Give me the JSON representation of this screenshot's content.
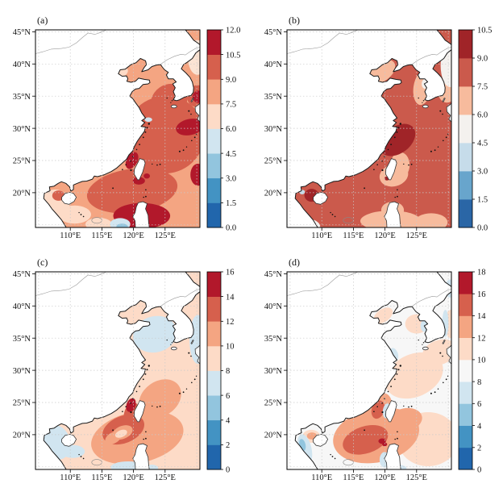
{
  "figure": {
    "background": "#ffffff",
    "layout": "2x2 filled-contour map grid"
  },
  "chart_data": {
    "type": "heatmap",
    "subtype": "filled_contour_geographic_maps",
    "region": "East China Sea / South China Sea / Yellow Sea",
    "axes": {
      "lon_range": [
        104.5,
        130.5
      ],
      "lat_range": [
        14.6,
        45.3
      ],
      "lon_tick_values": [
        110,
        115,
        120,
        125
      ],
      "lon_tick_labels": [
        "110°E",
        "115°E",
        "120°E",
        "125°E"
      ],
      "lat_tick_values": [
        20,
        25,
        30,
        35,
        40,
        45
      ],
      "lat_tick_labels": [
        "20°N",
        "25°N",
        "30°N",
        "35°N",
        "40°N",
        "45°N"
      ],
      "grid_lon": [
        105,
        110,
        115,
        120,
        125,
        130
      ],
      "grid_lat": [
        15,
        20,
        25,
        30,
        35,
        40,
        45
      ],
      "grid_on": true
    },
    "panels": [
      {
        "id": "a",
        "label": "(a)",
        "colorbar": {
          "range": [
            0,
            12
          ],
          "step": 1.5,
          "tick_labels": [
            "0.0",
            "1.5",
            "3.0",
            "4.5",
            "6.0",
            "7.5",
            "9.0",
            "10.5",
            "12.0"
          ],
          "colors_low_to_high": [
            "#2166ac",
            "#4393c3",
            "#92c5de",
            "#d1e5f0",
            "#fddbc7",
            "#f4a582",
            "#d6604d",
            "#b2182b"
          ]
        },
        "base_color": "#f4a582",
        "base_value_band": "7.5-9.0",
        "regions": [
          {
            "v": "9.0-10.5",
            "c": "#d6604d",
            "x": 125.0,
            "y": 29.0,
            "rx": 6.3,
            "ry": 6.0,
            "a": -20
          },
          {
            "v": "9.0-10.5",
            "c": "#d6604d",
            "x": 125.6,
            "y": 34.2,
            "rx": 3.0,
            "ry": 2.6,
            "a": -35
          },
          {
            "v": "9.0-10.5",
            "c": "#d6604d",
            "x": 130.1,
            "y": 35.0,
            "rx": 1.7,
            "ry": 1.7,
            "a": 0
          },
          {
            "v": "9.0-10.5",
            "c": "#d6604d",
            "x": 119.8,
            "y": 20.3,
            "rx": 7.2,
            "ry": 3.4,
            "a": -8
          },
          {
            "v": "10.5-12.0",
            "c": "#b2182b",
            "x": 128.9,
            "y": 30.2,
            "rx": 2.2,
            "ry": 1.25,
            "a": -12
          },
          {
            "v": "10.5-12.0",
            "c": "#b2182b",
            "x": 130.3,
            "y": 34.9,
            "rx": 0.95,
            "ry": 0.95,
            "a": 0
          },
          {
            "v": "10.5-12.0",
            "c": "#b2182b",
            "x": 119.75,
            "y": 25.0,
            "rx": 0.85,
            "ry": 1.4,
            "a": 28
          },
          {
            "v": "10.5-12.0",
            "c": "#b2182b",
            "x": 120.85,
            "y": 21.85,
            "rx": 0.95,
            "ry": 0.6,
            "a": 0
          },
          {
            "v": "10.5-12.0",
            "c": "#b2182b",
            "x": 122.1,
            "y": 22.6,
            "rx": 0.5,
            "ry": 0.4,
            "a": 0
          },
          {
            "v": "10.5-12.0",
            "c": "#b2182b",
            "x": 121.3,
            "y": 16.4,
            "rx": 4.5,
            "ry": 2.0,
            "a": 0
          },
          {
            "v": "10.5-12.0",
            "c": "#b2182b",
            "x": 130.2,
            "y": 22.8,
            "rx": 1.2,
            "ry": 1.7,
            "a": 0
          },
          {
            "v": "6.0-7.5",
            "c": "#fddbc7",
            "x": 107.6,
            "y": 18.3,
            "rx": 2.3,
            "ry": 2.2,
            "a": 0
          },
          {
            "v": "6.0-7.5",
            "c": "#fddbc7",
            "x": 110.7,
            "y": 16.6,
            "rx": 2.6,
            "ry": 1.4,
            "a": 0
          },
          {
            "v": "6.0-7.5",
            "c": "#fddbc7",
            "x": 114.5,
            "y": 15.1,
            "rx": 2.1,
            "ry": 1.0,
            "a": 0
          },
          {
            "v": "9.0-10.5",
            "c": "#d6604d",
            "x": 108.15,
            "y": 19.55,
            "rx": 1.0,
            "ry": 0.8,
            "a": 0
          },
          {
            "v": "6.0-7.5",
            "c": "#fddbc7",
            "x": 118.3,
            "y": 38.7,
            "rx": 0.9,
            "ry": 0.6,
            "a": -35
          },
          {
            "v": "6.0",
            "c": "#fbe3d3",
            "x": 130.1,
            "y": 41.0,
            "rx": 1.5,
            "ry": 2.7,
            "a": 0
          },
          {
            "v": "4.5-6.0",
            "c": "#d1e5f0",
            "x": 122.35,
            "y": 31.35,
            "rx": 0.6,
            "ry": 0.35,
            "a": 0
          },
          {
            "v": "4.5-6.0",
            "c": "#d1e5f0",
            "x": 117.9,
            "y": 15.1,
            "rx": 1.6,
            "ry": 0.95,
            "a": 0
          },
          {
            "v": "3.0-4.5",
            "c": "#92c5de",
            "x": 118.2,
            "y": 14.75,
            "rx": 0.9,
            "ry": 0.45,
            "a": 0
          }
        ]
      },
      {
        "id": "b",
        "label": "(b)",
        "colorbar": {
          "range": [
            0,
            10.5
          ],
          "step": 1.5,
          "tick_labels": [
            "0.0",
            "1.5",
            "3.0",
            "4.5",
            "6.0",
            "7.5",
            "9.0",
            "10.5"
          ],
          "colors_low_to_high": [
            "#2a66a6",
            "#68a5cc",
            "#c6dcea",
            "#f4f1ee",
            "#f7bb9d",
            "#cb5a4c",
            "#a02428"
          ]
        },
        "base_color": "#cb5a4c",
        "base_value_band": "7.5-9.0",
        "regions": [
          {
            "v": "6.0-7.5",
            "c": "#f7bb9d",
            "x": 119.4,
            "y": 38.8,
            "rx": 2.5,
            "ry": 1.5,
            "a": -35
          },
          {
            "v": "6.0-7.5",
            "c": "#f7bb9d",
            "x": 125.9,
            "y": 36.3,
            "rx": 1.4,
            "ry": 2.7,
            "a": 8
          },
          {
            "v": "6.0-7.5",
            "c": "#f7bb9d",
            "x": 121.4,
            "y": 22.7,
            "rx": 2.3,
            "ry": 1.7,
            "a": -15
          },
          {
            "v": "6.0-7.5",
            "c": "#f7bb9d",
            "x": 122.4,
            "y": 24.3,
            "rx": 1.5,
            "ry": 2.0,
            "a": 0
          },
          {
            "v": "6.0-7.5",
            "c": "#f7bb9d",
            "x": 120.9,
            "y": 15.6,
            "rx": 4.8,
            "ry": 1.6,
            "a": 0
          },
          {
            "v": "6.0-7.5",
            "c": "#f7bb9d",
            "x": 121.2,
            "y": 17.3,
            "rx": 1.8,
            "ry": 1.3,
            "a": 0
          },
          {
            "v": "6.0-7.5",
            "c": "#f7bb9d",
            "x": 127.3,
            "y": 15.4,
            "rx": 2.6,
            "ry": 1.4,
            "a": 0
          },
          {
            "v": "6.0-7.5",
            "c": "#f7bb9d",
            "x": 129.8,
            "y": 35.6,
            "rx": 1.4,
            "ry": 1.6,
            "a": 0
          },
          {
            "v": "4.5-6.0",
            "c": "#f4f1ee",
            "x": 126.35,
            "y": 36.9,
            "rx": 0.55,
            "ry": 0.75,
            "a": 0
          },
          {
            "v": "4.5-6.0",
            "c": "#f4f1ee",
            "x": 130.3,
            "y": 39.8,
            "rx": 1.5,
            "ry": 3.4,
            "a": 0
          },
          {
            "v": "4.5-6.0",
            "c": "#f4f1ee",
            "x": 108.5,
            "y": 15.0,
            "rx": 1.3,
            "ry": 0.8,
            "a": 20
          },
          {
            "v": "9.0-10.5",
            "c": "#a02428",
            "x": 122.0,
            "y": 28.2,
            "rx": 3.15,
            "ry": 2.05,
            "a": -38
          },
          {
            "v": "9.0-10.5",
            "c": "#a02428",
            "x": 108.4,
            "y": 19.6,
            "rx": 1.15,
            "ry": 1.0,
            "a": 0
          },
          {
            "v": "9.0-10.5",
            "c": "#a02428",
            "x": 120.3,
            "y": 22.2,
            "rx": 0.4,
            "ry": 0.3,
            "a": 0
          },
          {
            "v": "3.0-4.5",
            "c": "#c6dcea",
            "x": 106.9,
            "y": 20.1,
            "rx": 0.45,
            "ry": 0.35,
            "a": 0
          }
        ]
      },
      {
        "id": "c",
        "label": "(c)",
        "colorbar": {
          "range": [
            0,
            16
          ],
          "step": 2,
          "tick_labels": [
            "0",
            "2",
            "4",
            "6",
            "8",
            "10",
            "12",
            "14",
            "16"
          ],
          "colors_low_to_high": [
            "#2166ac",
            "#4393c3",
            "#92c5de",
            "#d1e5f0",
            "#fddbc7",
            "#f4a582",
            "#d6604d",
            "#b2182b"
          ]
        },
        "base_color": "#fddbc7",
        "base_value_band": "8-10",
        "regions": [
          {
            "v": "10-12",
            "c": "#f4a582",
            "x": 120.6,
            "y": 19.6,
            "rx": 7.4,
            "ry": 4.0,
            "a": -12
          },
          {
            "v": "10-12",
            "c": "#f4a582",
            "x": 124.2,
            "y": 25.6,
            "rx": 3.6,
            "ry": 2.7,
            "a": -35
          },
          {
            "v": "12-14",
            "c": "#d6604d",
            "x": 118.4,
            "y": 20.8,
            "rx": 3.45,
            "ry": 2.1,
            "a": -22
          },
          {
            "v": "12-14",
            "c": "#d6604d",
            "x": 119.65,
            "y": 23.2,
            "rx": 1.15,
            "ry": 1.9,
            "a": 15
          },
          {
            "v": "10-12",
            "c": "#f4a582",
            "x": 118.25,
            "y": 20.35,
            "rx": 1.7,
            "ry": 1.0,
            "a": -22
          },
          {
            "v": "10-12",
            "c": "#f4a582",
            "x": 116.8,
            "y": 19.5,
            "rx": 1.4,
            "ry": 0.85,
            "a": -30
          },
          {
            "v": "8-10",
            "c": "#fddbc7",
            "x": 118.05,
            "y": 20.15,
            "rx": 1.0,
            "ry": 0.55,
            "a": -22
          },
          {
            "v": "14-16",
            "c": "#b2182b",
            "x": 119.6,
            "y": 24.6,
            "rx": 0.72,
            "ry": 1.1,
            "a": 20
          },
          {
            "v": "6-8",
            "c": "#d1e5f0",
            "x": 123.4,
            "y": 35.6,
            "rx": 3.5,
            "ry": 2.8,
            "a": -15
          },
          {
            "v": "6-8",
            "c": "#d1e5f0",
            "x": 130.2,
            "y": 34.8,
            "rx": 1.35,
            "ry": 3.8,
            "a": 0
          },
          {
            "v": "6-8",
            "c": "#d1e5f0",
            "x": 107.9,
            "y": 18.8,
            "rx": 2.1,
            "ry": 2.7,
            "a": -15
          },
          {
            "v": "6-8",
            "c": "#d1e5f0",
            "x": 110.4,
            "y": 17.4,
            "rx": 1.9,
            "ry": 1.0,
            "a": 0
          },
          {
            "v": "6-8",
            "c": "#d1e5f0",
            "x": 119.2,
            "y": 14.95,
            "rx": 2.8,
            "ry": 0.9,
            "a": 0
          },
          {
            "v": "6-8",
            "c": "#d1e5f0",
            "x": 122.9,
            "y": 14.8,
            "rx": 1.0,
            "ry": 0.55,
            "a": 0
          }
        ]
      },
      {
        "id": "d",
        "label": "(d)",
        "colorbar": {
          "range": [
            0,
            18
          ],
          "step": 2,
          "tick_labels": [
            "0",
            "2",
            "4",
            "6",
            "8",
            "10",
            "12",
            "14",
            "16",
            "18"
          ],
          "colors_low_to_high": [
            "#2166ac",
            "#4393c3",
            "#92c5de",
            "#d1e5f0",
            "#f7f7f7",
            "#fddbc7",
            "#f4a582",
            "#d6604d",
            "#b2182b"
          ]
        },
        "base_color": "#f7f7f7",
        "base_value_band": "8-10",
        "regions": [
          {
            "v": "10-12",
            "c": "#fddbc7",
            "x": 125.0,
            "y": 37.2,
            "rx": 1.8,
            "ry": 1.5,
            "a": 0
          },
          {
            "v": "10-12",
            "c": "#fddbc7",
            "x": 119.7,
            "y": 38.5,
            "rx": 1.7,
            "ry": 1.0,
            "a": -35
          },
          {
            "v": "10-12",
            "c": "#fddbc7",
            "x": 124.6,
            "y": 29.2,
            "rx": 4.8,
            "ry": 3.3,
            "a": -25
          },
          {
            "v": "10-12",
            "c": "#fddbc7",
            "x": 128.6,
            "y": 32.8,
            "rx": 2.8,
            "ry": 1.9,
            "a": -20
          },
          {
            "v": "10-12",
            "c": "#fddbc7",
            "x": 130.4,
            "y": 37.2,
            "rx": 0.9,
            "ry": 2.2,
            "a": 0
          },
          {
            "v": "10-12",
            "c": "#fddbc7",
            "x": 126.8,
            "y": 19.3,
            "rx": 4.8,
            "ry": 4.2,
            "a": 0
          },
          {
            "v": "10-12",
            "c": "#fddbc7",
            "x": 108.35,
            "y": 19.75,
            "rx": 1.4,
            "ry": 1.0,
            "a": 0
          },
          {
            "v": "12-14",
            "c": "#f4a582",
            "x": 118.6,
            "y": 19.9,
            "rx": 6.9,
            "ry": 4.2,
            "a": -12
          },
          {
            "v": "12-14",
            "c": "#f4a582",
            "x": 119.4,
            "y": 24.2,
            "rx": 1.6,
            "ry": 2.3,
            "a": 18
          },
          {
            "v": "12-14",
            "c": "#f4a582",
            "x": 123.2,
            "y": 22.3,
            "rx": 2.7,
            "ry": 1.8,
            "a": -12
          },
          {
            "v": "12-14",
            "c": "#f4a582",
            "x": 108.45,
            "y": 19.8,
            "rx": 0.8,
            "ry": 0.55,
            "a": 0
          },
          {
            "v": "14-16",
            "c": "#d6604d",
            "x": 116.9,
            "y": 19.2,
            "rx": 3.7,
            "ry": 2.1,
            "a": -18
          },
          {
            "v": "14-16",
            "c": "#d6604d",
            "x": 118.9,
            "y": 23.9,
            "rx": 1.0,
            "ry": 1.45,
            "a": 18
          },
          {
            "v": "16-18",
            "c": "#b2182b",
            "x": 119.55,
            "y": 19.0,
            "rx": 0.6,
            "ry": 0.42,
            "a": 0
          },
          {
            "v": "16-18",
            "c": "#b2182b",
            "x": 119.95,
            "y": 18.5,
            "rx": 0.4,
            "ry": 0.3,
            "a": 0
          },
          {
            "v": "6-8",
            "c": "#d1e5f0",
            "x": 120.25,
            "y": 23.7,
            "rx": 0.6,
            "ry": 1.15,
            "a": 8
          },
          {
            "v": "6-8",
            "c": "#d1e5f0",
            "x": 126.2,
            "y": 36.9,
            "rx": 0.6,
            "ry": 0.9,
            "a": 0
          },
          {
            "v": "6-8",
            "c": "#d1e5f0",
            "x": 121.45,
            "y": 32.5,
            "rx": 0.6,
            "ry": 1.0,
            "a": -20
          },
          {
            "v": "6-8",
            "c": "#d1e5f0",
            "x": 107.3,
            "y": 17.7,
            "rx": 1.1,
            "ry": 2.4,
            "a": -12
          },
          {
            "v": "6-8",
            "c": "#d1e5f0",
            "x": 119.95,
            "y": 16.1,
            "rx": 0.8,
            "ry": 1.2,
            "a": 0
          },
          {
            "v": "6-8",
            "c": "#d1e5f0",
            "x": 122.1,
            "y": 14.8,
            "rx": 1.3,
            "ry": 0.5,
            "a": 0
          },
          {
            "v": "6-8",
            "c": "#d1e5f0",
            "x": 129.55,
            "y": 37.3,
            "rx": 0.5,
            "ry": 2.1,
            "a": 0
          },
          {
            "v": "6-8",
            "c": "#d1e5f0",
            "x": 130.3,
            "y": 42.7,
            "rx": 0.8,
            "ry": 1.4,
            "a": 0
          },
          {
            "v": "4-6",
            "c": "#92c5de",
            "x": 106.95,
            "y": 18.4,
            "rx": 0.5,
            "ry": 0.95,
            "a": -12
          }
        ]
      }
    ]
  }
}
